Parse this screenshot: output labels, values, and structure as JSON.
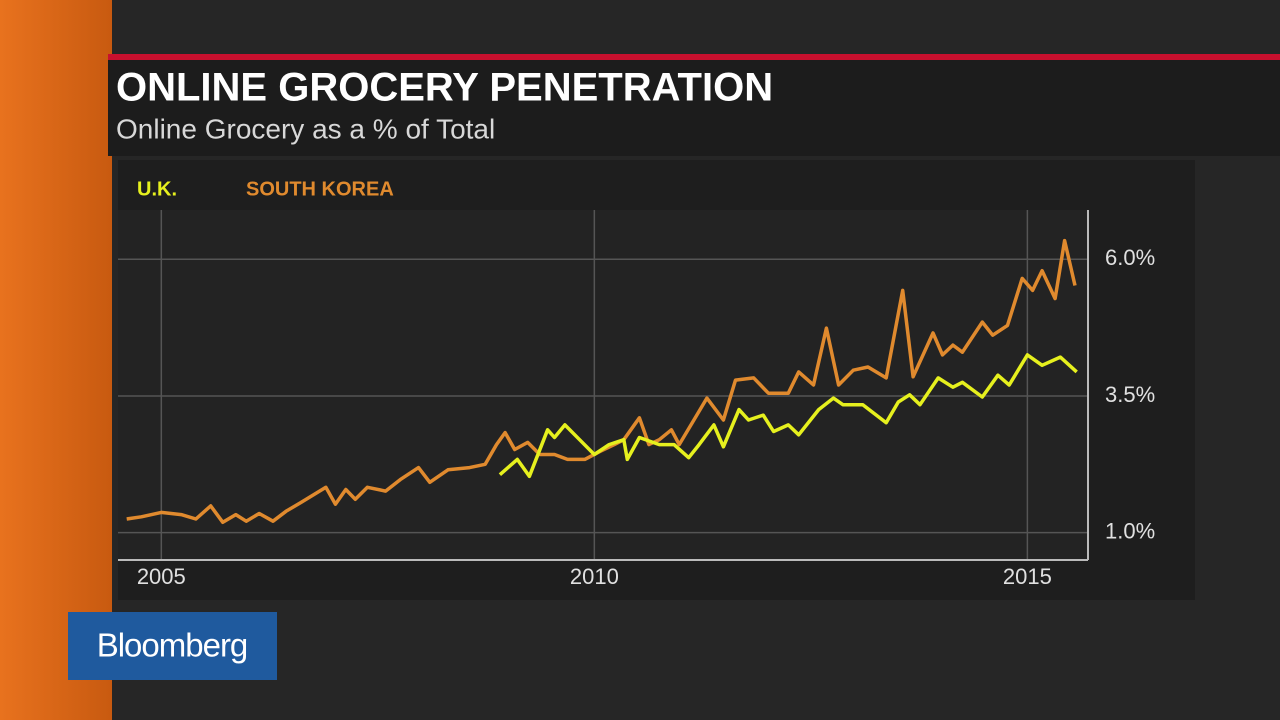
{
  "logo": "Bloomberg",
  "chart_data": {
    "type": "line",
    "title": "ONLINE GROCERY PENETRATION",
    "subtitle": "Online Grocery as a % of Total",
    "xlim": [
      2004.5,
      2015.7
    ],
    "xticks": [
      2005,
      2010,
      2015
    ],
    "ylim": [
      0.5,
      6.9
    ],
    "yticks": [
      {
        "value": 1.0,
        "label": "1.0%"
      },
      {
        "value": 3.5,
        "label": "3.5%"
      },
      {
        "value": 6.0,
        "label": "6.0%"
      }
    ],
    "grid": true,
    "series": [
      {
        "name": "U.K.",
        "color": "#e6f01e",
        "x": [
          2008.91,
          2009.11,
          2009.25,
          2009.46,
          2009.54,
          2009.66,
          2009.83,
          2010.0,
          2010.17,
          2010.34,
          2010.38,
          2010.52,
          2010.75,
          2010.92,
          2011.09,
          2011.21,
          2011.38,
          2011.49,
          2011.67,
          2011.78,
          2011.95,
          2012.07,
          2012.24,
          2012.36,
          2012.59,
          2012.76,
          2012.87,
          2013.1,
          2013.37,
          2013.51,
          2013.64,
          2013.76,
          2013.97,
          2014.14,
          2014.25,
          2014.48,
          2014.66,
          2014.79,
          2015.0,
          2015.17,
          2015.38,
          2015.57
        ],
        "values": [
          2.06,
          2.34,
          2.03,
          2.88,
          2.74,
          2.97,
          2.7,
          2.43,
          2.61,
          2.7,
          2.34,
          2.74,
          2.61,
          2.61,
          2.37,
          2.61,
          2.97,
          2.57,
          3.25,
          3.06,
          3.15,
          2.85,
          2.97,
          2.79,
          3.25,
          3.46,
          3.34,
          3.34,
          3.01,
          3.39,
          3.52,
          3.34,
          3.83,
          3.66,
          3.75,
          3.48,
          3.88,
          3.7,
          4.25,
          4.06,
          4.21,
          3.94
        ]
      },
      {
        "name": "SOUTH KOREA",
        "color": "#e08a2e",
        "x": [
          2004.6,
          2004.77,
          2005.0,
          2005.23,
          2005.4,
          2005.57,
          2005.71,
          2005.86,
          2005.98,
          2006.13,
          2006.29,
          2006.44,
          2006.61,
          2006.9,
          2007.01,
          2007.13,
          2007.24,
          2007.38,
          2007.59,
          2007.76,
          2007.97,
          2008.1,
          2008.31,
          2008.56,
          2008.74,
          2008.87,
          2008.97,
          2009.08,
          2009.23,
          2009.37,
          2009.54,
          2009.69,
          2009.89,
          2010.06,
          2010.23,
          2010.34,
          2010.52,
          2010.63,
          2010.75,
          2010.89,
          2010.98,
          2011.15,
          2011.3,
          2011.49,
          2011.63,
          2011.84,
          2012.01,
          2012.24,
          2012.36,
          2012.53,
          2012.68,
          2012.82,
          2012.99,
          2013.16,
          2013.37,
          2013.56,
          2013.68,
          2013.91,
          2014.02,
          2014.14,
          2014.25,
          2014.48,
          2014.6,
          2014.77,
          2014.94,
          2015.06,
          2015.17,
          2015.32,
          2015.43,
          2015.55
        ],
        "values": [
          1.25,
          1.29,
          1.37,
          1.33,
          1.25,
          1.49,
          1.19,
          1.33,
          1.21,
          1.35,
          1.21,
          1.39,
          1.55,
          1.83,
          1.52,
          1.79,
          1.61,
          1.83,
          1.76,
          1.97,
          2.19,
          1.92,
          2.15,
          2.19,
          2.25,
          2.61,
          2.83,
          2.52,
          2.65,
          2.43,
          2.43,
          2.34,
          2.34,
          2.48,
          2.61,
          2.7,
          3.1,
          2.61,
          2.7,
          2.88,
          2.61,
          3.06,
          3.46,
          3.06,
          3.79,
          3.83,
          3.55,
          3.55,
          3.94,
          3.7,
          4.74,
          3.7,
          3.97,
          4.03,
          3.83,
          5.43,
          3.85,
          4.65,
          4.25,
          4.43,
          4.3,
          4.85,
          4.61,
          4.79,
          5.65,
          5.43,
          5.79,
          5.28,
          6.34,
          5.52
        ]
      }
    ]
  }
}
